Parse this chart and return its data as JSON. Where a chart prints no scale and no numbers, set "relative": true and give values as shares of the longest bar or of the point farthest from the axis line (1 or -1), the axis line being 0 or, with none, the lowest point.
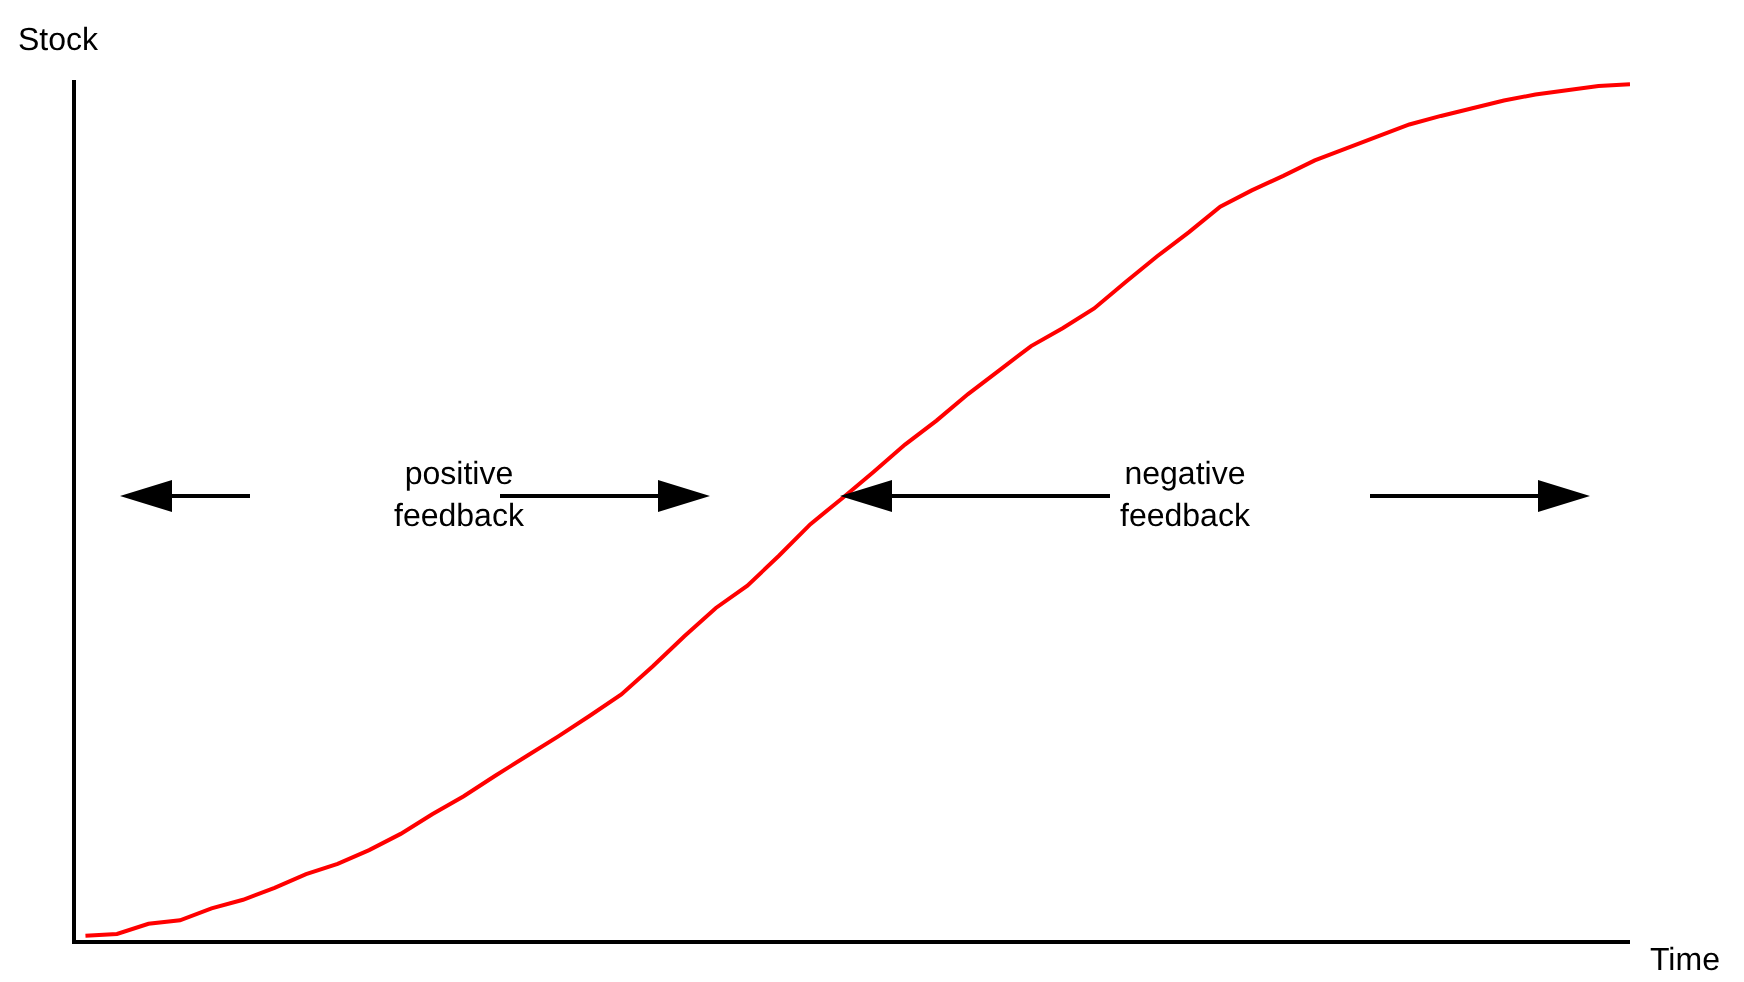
{
  "chart_data": {
    "type": "line",
    "relative": true,
    "xlabel": "Time",
    "ylabel": "Stock",
    "color": "#ff0000",
    "marker": "none",
    "annotations": [
      "positive\nfeedback",
      "negative\nfeedback"
    ],
    "categories": [
      null,
      null,
      null,
      null,
      null,
      null,
      null,
      null,
      null,
      null,
      null,
      null,
      null,
      null,
      null,
      null,
      null,
      null,
      null,
      null,
      null,
      null,
      null,
      null,
      null,
      null,
      null,
      null,
      null,
      null,
      null,
      null,
      null,
      null,
      null,
      null,
      null,
      null,
      null,
      null,
      null,
      null,
      null,
      null,
      null,
      null,
      null,
      null,
      null,
      null
    ],
    "values": [
      0.005,
      0.007,
      0.019,
      0.023,
      0.037,
      0.047,
      0.061,
      0.077,
      0.089,
      0.105,
      0.124,
      0.147,
      0.168,
      0.192,
      0.215,
      0.238,
      0.262,
      0.287,
      0.32,
      0.355,
      0.388,
      0.414,
      0.449,
      0.486,
      0.516,
      0.547,
      0.579,
      0.607,
      0.638,
      0.666,
      0.694,
      0.715,
      0.738,
      0.769,
      0.799,
      0.827,
      0.857,
      0.876,
      0.893,
      0.911,
      0.925,
      0.939,
      0.953,
      0.963,
      0.972,
      0.981,
      0.988,
      0.993,
      0.998,
      1
    ]
  }
}
